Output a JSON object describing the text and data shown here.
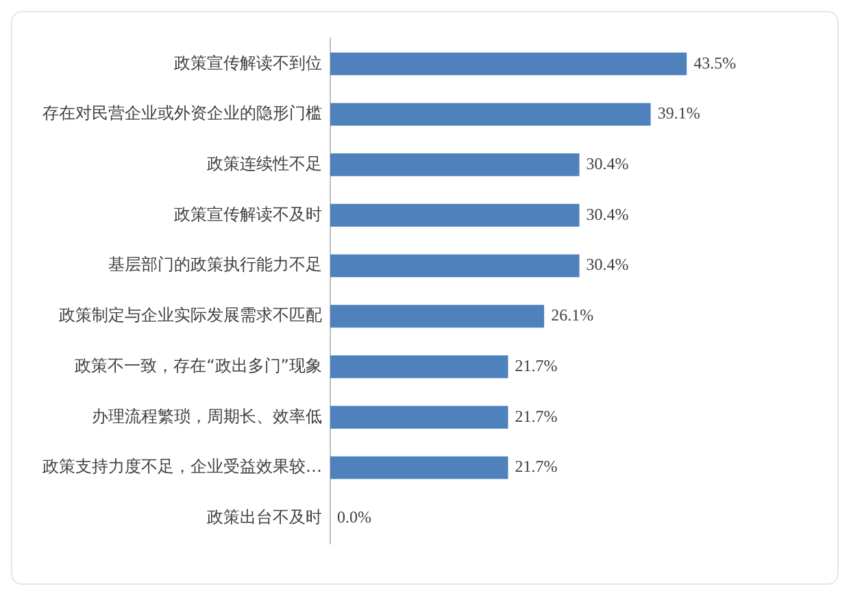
{
  "chart_data": {
    "type": "bar",
    "orientation": "horizontal",
    "categories": [
      "政策宣传解读不到位",
      "存在对民营企业或外资企业的隐形门槛",
      "政策连续性不足",
      "政策宣传解读不及时",
      "基层部门的政策执行能力不足",
      "政策制定与企业实际发展需求不匹配",
      "政策不一致，存在“政出多门”现象",
      "办理流程繁琐，周期长、效率低",
      "政策支持力度不足，企业受益效果较…",
      "政策出台不及时"
    ],
    "values": [
      43.5,
      39.1,
      30.4,
      30.4,
      30.4,
      26.1,
      21.7,
      21.7,
      21.7,
      0.0
    ],
    "value_labels": [
      "43.5%",
      "39.1%",
      "30.4%",
      "30.4%",
      "30.4%",
      "26.1%",
      "21.7%",
      "21.7%",
      "21.7%",
      "0.0%"
    ],
    "color": "#4f81bd",
    "tick_labels": "y"
  }
}
